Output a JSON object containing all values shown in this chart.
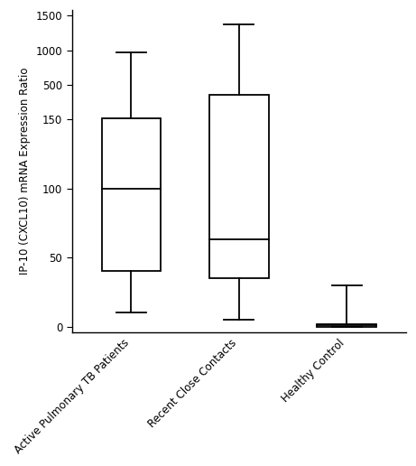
{
  "categories": [
    "Active Pulmonary TB Patients",
    "Recent Close Contacts",
    "Healthy Control"
  ],
  "boxes": [
    {
      "whislo": 10,
      "q1": 40,
      "med": 100,
      "q3": 160,
      "whishi": 975
    },
    {
      "whislo": 5,
      "q1": 35,
      "med": 63,
      "q3": 400,
      "whishi": 1375
    },
    {
      "whislo": 0,
      "q1": 0,
      "med": 1,
      "q3": 2,
      "whishi": 30
    }
  ],
  "yticks_real": [
    0,
    50,
    100,
    150,
    500,
    1000,
    1500
  ],
  "ylabel": "IP-10 (CXCL10) mRNA Expression Ratio",
  "background_color": "#ffffff",
  "box_color": "#ffffff",
  "line_color": "#000000",
  "figsize": [
    4.61,
    5.16
  ],
  "dpi": 100,
  "box_width": 0.55,
  "lw": 1.3
}
